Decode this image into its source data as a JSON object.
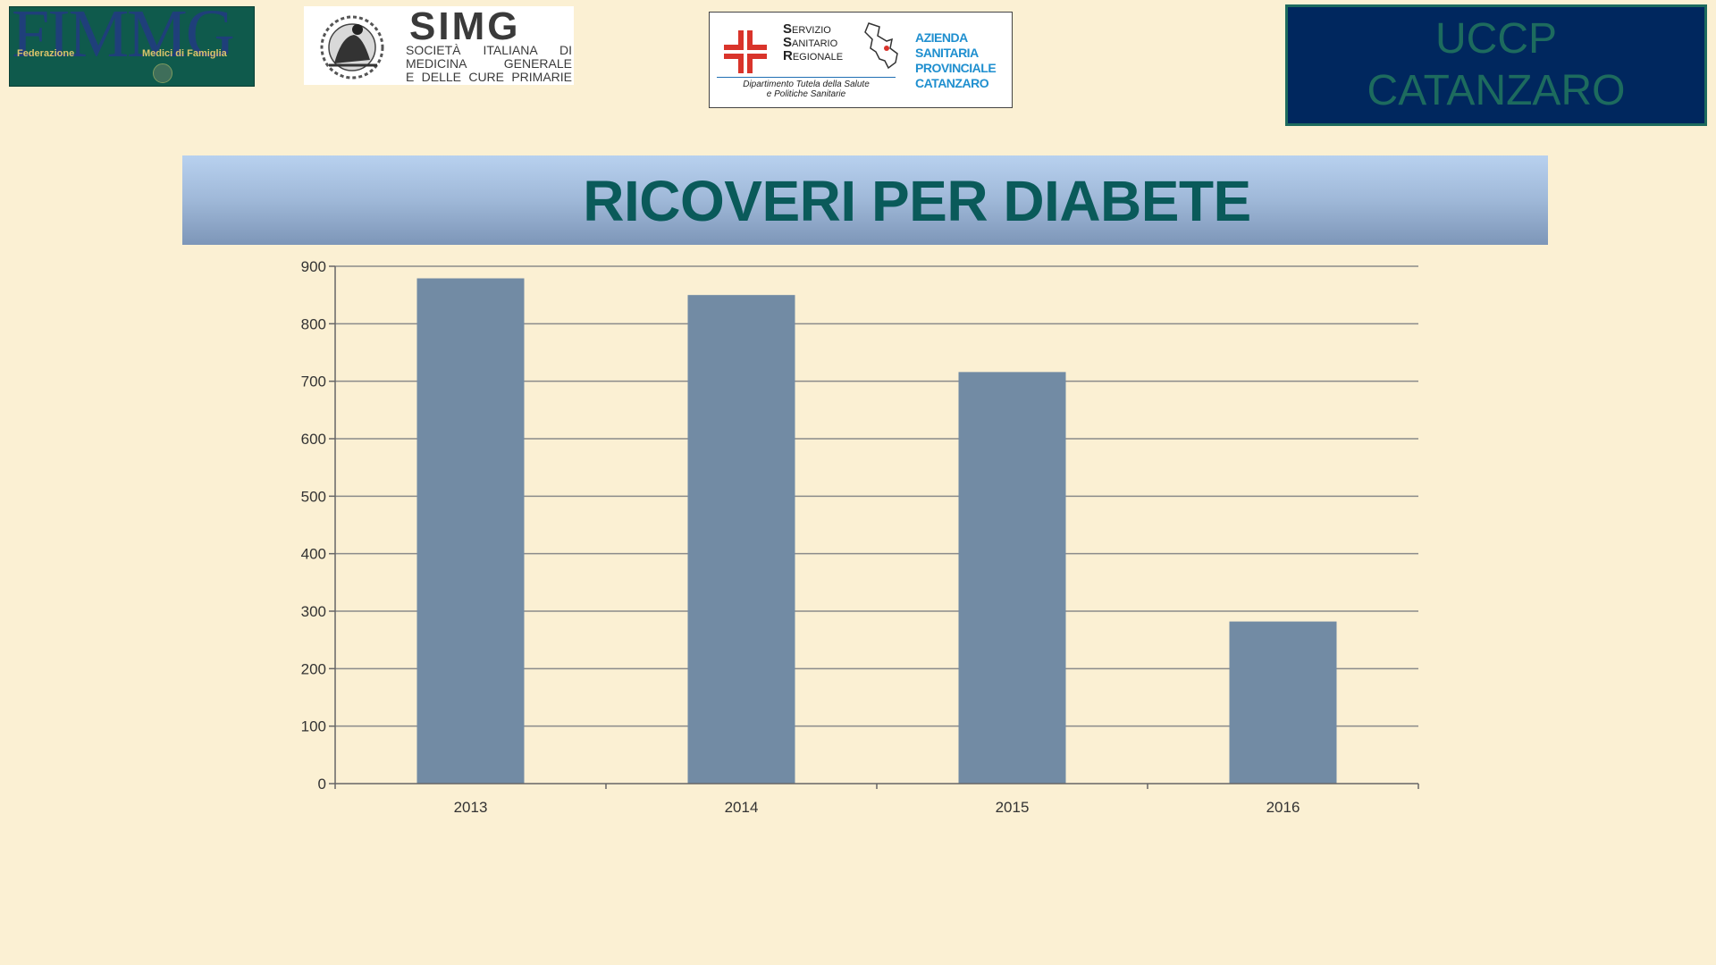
{
  "logos": {
    "fimmg": {
      "mark": "FIMMG",
      "left_label": "Federazione",
      "right_label": "Medici di Famiglia"
    },
    "simg": {
      "name": "SIMG",
      "subtitle_lines": [
        "SOCIETÀ ITALIANA DI",
        "MEDICINA GENERALE",
        "E DELLE CURE PRIMARIE"
      ]
    },
    "ssr": {
      "lines": [
        "ERVIZIO",
        "ANITARIO",
        "EGIONALE"
      ],
      "initials": [
        "S",
        "S",
        "R"
      ],
      "department_lines": [
        "Dipartimento Tutela della Salute",
        "e Politiche Sanitarie"
      ],
      "asp_lines": [
        "AZIENDA",
        "SANITARIA",
        "PROVINCIALE",
        "CATANZARO"
      ]
    }
  },
  "uccp": {
    "line1": "UCCP",
    "line2": "CATANZARO"
  },
  "colors": {
    "background": "#fbf0d3",
    "bar": "#728ba4",
    "title": "#0a5a5a",
    "uccp_bg": "#00275e"
  },
  "chart_data": {
    "type": "bar",
    "title": "RICOVERI PER  DIABETE",
    "categories": [
      "2013",
      "2014",
      "2015",
      "2016"
    ],
    "values": [
      879,
      850,
      716,
      282
    ],
    "ylim": [
      0,
      900
    ],
    "yticks": [
      0,
      100,
      200,
      300,
      400,
      500,
      600,
      700,
      800,
      900
    ],
    "xlabel": "",
    "ylabel": "",
    "grid": true,
    "legend": "none"
  }
}
